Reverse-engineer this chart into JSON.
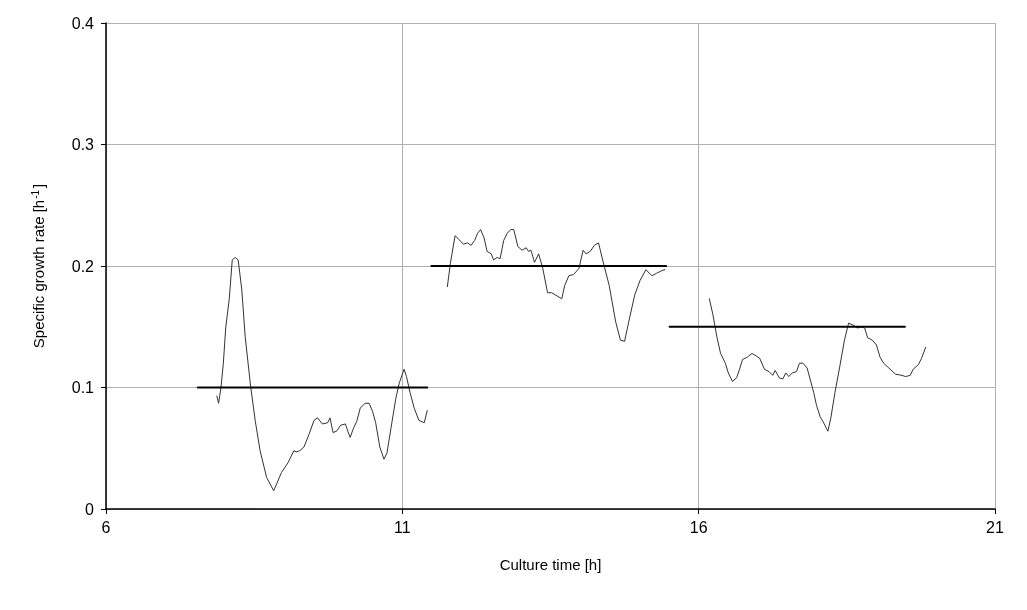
{
  "chart_data": {
    "type": "line",
    "xlabel": "Culture time [h]",
    "ylabel": "Specific growth rate [h$^{-1}$]",
    "xlim": [
      6,
      21
    ],
    "xticks": [
      6,
      11,
      16,
      21
    ],
    "ylim": [
      0,
      0.4
    ],
    "yticks": [
      0,
      0.1,
      0.2,
      0.3,
      0.4
    ],
    "grid": true,
    "marker": "none",
    "line_style": "solid",
    "series": [
      {
        "color": "#333333",
        "x": [
          7.87,
          7.9,
          7.94,
          7.98,
          8.02,
          8.08,
          8.13,
          8.18,
          8.23,
          8.29,
          8.35,
          8.44,
          8.52,
          8.6,
          8.71,
          8.83,
          8.96,
          9.07,
          9.17,
          9.21,
          9.27,
          9.34,
          9.43,
          9.51,
          9.57,
          9.65,
          9.74,
          9.78,
          9.83,
          9.89,
          9.96,
          10.04,
          10.08,
          10.12,
          10.18,
          10.23,
          10.29,
          10.37,
          10.44,
          10.5,
          10.55,
          10.62,
          10.69,
          10.74,
          10.81,
          10.89,
          10.95,
          11.03,
          11.07,
          11.13,
          11.2,
          11.28,
          11.37,
          11.42
        ],
        "values": [
          0.093,
          0.087,
          0.1,
          0.12,
          0.149,
          0.173,
          0.205,
          0.207,
          0.205,
          0.181,
          0.141,
          0.101,
          0.072,
          0.048,
          0.026,
          0.015,
          0.03,
          0.038,
          0.048,
          0.047,
          0.048,
          0.051,
          0.062,
          0.073,
          0.075,
          0.07,
          0.071,
          0.075,
          0.063,
          0.064,
          0.069,
          0.07,
          0.064,
          0.059,
          0.067,
          0.072,
          0.083,
          0.087,
          0.087,
          0.08,
          0.071,
          0.051,
          0.041,
          0.046,
          0.067,
          0.091,
          0.104,
          0.115,
          0.109,
          0.096,
          0.083,
          0.073,
          0.071,
          0.081
        ]
      },
      {
        "color": "#333333",
        "x": [
          11.76,
          11.81,
          11.89,
          11.95,
          12.03,
          12.1,
          12.16,
          12.22,
          12.27,
          12.32,
          12.38,
          12.43,
          12.5,
          12.54,
          12.6,
          12.65,
          12.71,
          12.77,
          12.83,
          12.88,
          12.95,
          13.02,
          13.09,
          13.13,
          13.17,
          13.23,
          13.3,
          13.37,
          13.45,
          13.52,
          13.59,
          13.69,
          13.74,
          13.81,
          13.89,
          13.98,
          14.05,
          14.1,
          14.17,
          14.24,
          14.31,
          14.38,
          14.49,
          14.6,
          14.68,
          14.75,
          14.82,
          14.92,
          15.01,
          15.11,
          15.21,
          15.29,
          15.37,
          15.43
        ],
        "values": [
          0.183,
          0.202,
          0.225,
          0.222,
          0.218,
          0.219,
          0.217,
          0.221,
          0.227,
          0.23,
          0.223,
          0.212,
          0.21,
          0.205,
          0.207,
          0.206,
          0.221,
          0.227,
          0.23,
          0.23,
          0.216,
          0.213,
          0.215,
          0.212,
          0.213,
          0.203,
          0.21,
          0.198,
          0.178,
          0.178,
          0.176,
          0.173,
          0.184,
          0.192,
          0.193,
          0.198,
          0.213,
          0.21,
          0.212,
          0.217,
          0.219,
          0.205,
          0.184,
          0.154,
          0.139,
          0.138,
          0.154,
          0.176,
          0.188,
          0.197,
          0.192,
          0.194,
          0.196,
          0.197
        ]
      },
      {
        "color": "#333333",
        "x": [
          16.18,
          16.24,
          16.31,
          16.37,
          16.45,
          16.5,
          16.57,
          16.64,
          16.69,
          16.74,
          16.82,
          16.9,
          16.97,
          17.03,
          17.11,
          17.19,
          17.25,
          17.29,
          17.36,
          17.42,
          17.47,
          17.52,
          17.58,
          17.65,
          17.7,
          17.76,
          17.83,
          17.88,
          17.94,
          17.99,
          18.05,
          18.12,
          18.18,
          18.23,
          18.3,
          18.38,
          18.46,
          18.53,
          18.62,
          18.68,
          18.74,
          18.8,
          18.85,
          18.93,
          19,
          19.06,
          19.12,
          19.21,
          19.32,
          19.43,
          19.49,
          19.57,
          19.62,
          19.71,
          19.76,
          19.83
        ],
        "values": [
          0.173,
          0.16,
          0.141,
          0.128,
          0.12,
          0.112,
          0.105,
          0.108,
          0.115,
          0.123,
          0.125,
          0.128,
          0.126,
          0.124,
          0.115,
          0.113,
          0.11,
          0.114,
          0.108,
          0.107,
          0.112,
          0.109,
          0.112,
          0.113,
          0.12,
          0.12,
          0.116,
          0.107,
          0.096,
          0.085,
          0.076,
          0.07,
          0.064,
          0.075,
          0.096,
          0.117,
          0.139,
          0.153,
          0.151,
          0.149,
          0.15,
          0.149,
          0.141,
          0.139,
          0.135,
          0.125,
          0.12,
          0.116,
          0.111,
          0.11,
          0.109,
          0.11,
          0.115,
          0.119,
          0.124,
          0.133
        ]
      },
      {
        "color": "#000000",
        "x": [
          7.55,
          11.42
        ],
        "values": [
          0.1,
          0.1
        ]
      },
      {
        "color": "#000000",
        "x": [
          11.49,
          15.45
        ],
        "values": [
          0.2,
          0.2
        ]
      },
      {
        "color": "#000000",
        "x": [
          15.51,
          19.48
        ],
        "values": [
          0.15,
          0.15
        ]
      }
    ]
  }
}
